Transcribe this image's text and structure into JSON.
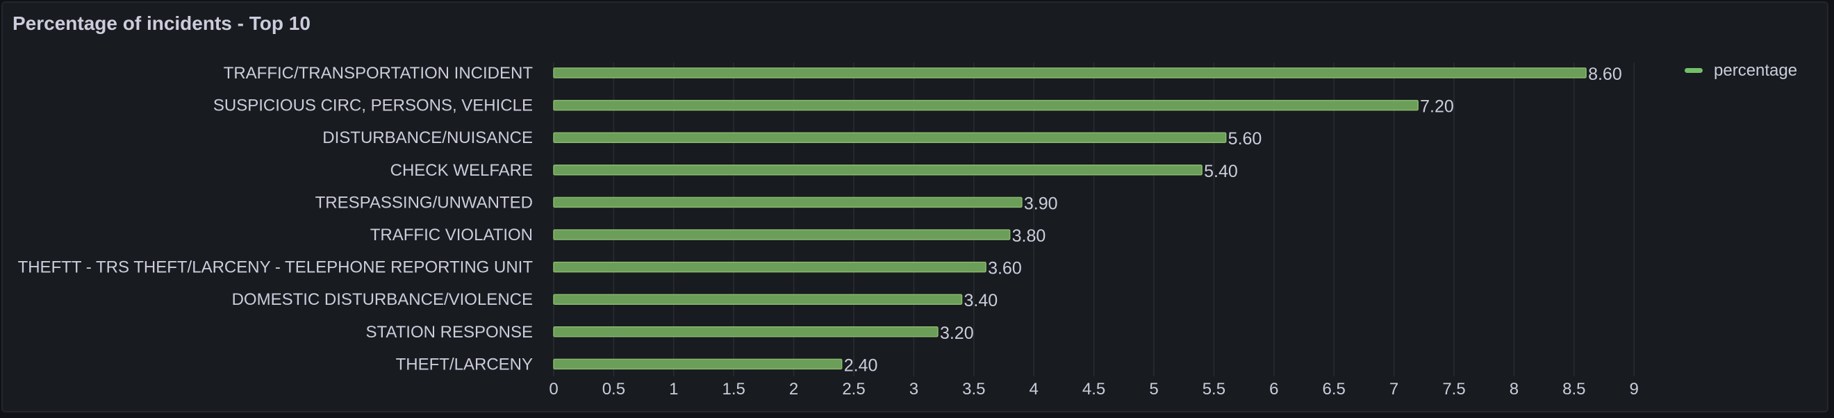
{
  "panel": {
    "title": "Percentage of incidents - Top 10"
  },
  "colors": {
    "bar_fill": "#6b9e58",
    "bar_stroke": "#8ab86f",
    "legend_swatch": "#73bf69"
  },
  "chart_data": {
    "type": "bar",
    "orientation": "horizontal",
    "title": "Percentage of incidents - Top 10",
    "categories": [
      "TRAFFIC/TRANSPORTATION INCIDENT",
      "SUSPICIOUS CIRC, PERSONS, VEHICLE",
      "DISTURBANCE/NUISANCE",
      "CHECK WELFARE",
      "TRESPASSING/UNWANTED",
      "TRAFFIC VIOLATION",
      "THEFTT - TRS THEFT/LARCENY - TELEPHONE REPORTING UNIT",
      "DOMESTIC DISTURBANCE/VIOLENCE",
      "STATION RESPONSE",
      "THEFT/LARCENY"
    ],
    "series": [
      {
        "name": "percentage",
        "values": [
          8.6,
          7.2,
          5.6,
          5.4,
          3.9,
          3.8,
          3.6,
          3.4,
          3.2,
          2.4
        ],
        "value_labels": [
          "8.60",
          "7.20",
          "5.60",
          "5.40",
          "3.90",
          "3.80",
          "3.60",
          "3.40",
          "3.20",
          "2.40"
        ]
      }
    ],
    "x_ticks": [
      "0",
      "0.5",
      "1",
      "1.5",
      "2",
      "2.5",
      "3",
      "3.5",
      "4",
      "4.5",
      "5",
      "5.5",
      "6",
      "6.5",
      "7",
      "7.5",
      "8",
      "8.5",
      "9"
    ],
    "xlim": [
      0,
      9
    ],
    "xlabel": "",
    "ylabel": "",
    "grid": true,
    "legend": {
      "position": "top-right",
      "entries": [
        "percentage"
      ]
    }
  }
}
